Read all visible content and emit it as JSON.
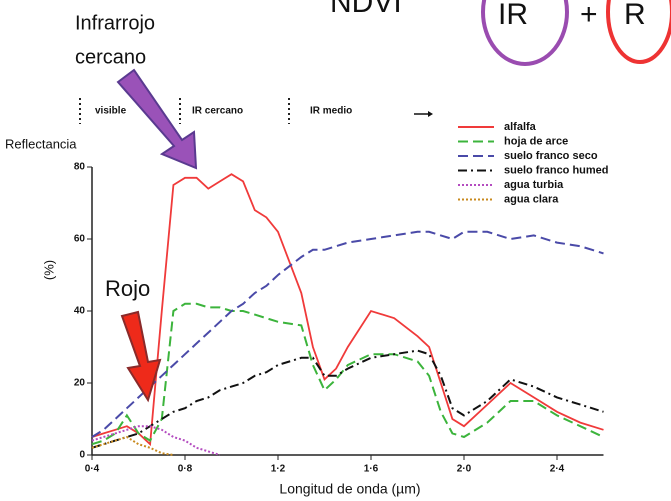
{
  "chart_data": {
    "type": "line",
    "formula": {
      "lhs": "NDVI",
      "terms": [
        "IR",
        "+",
        "R"
      ]
    },
    "annotations": [
      "Infrarrojo",
      "cercano",
      "Rojo"
    ],
    "regions": [
      "visible",
      "IR cercano",
      "IR medio"
    ],
    "y_title": "Reflectancia",
    "ylabel": "(%)",
    "xlabel": "Longitud de onda (µm)",
    "x": [
      0.4,
      0.45,
      0.5,
      0.55,
      0.6,
      0.65,
      0.7,
      0.75,
      0.8,
      0.85,
      0.9,
      0.95,
      1.0,
      1.05,
      1.1,
      1.15,
      1.2,
      1.3,
      1.35,
      1.4,
      1.45,
      1.5,
      1.6,
      1.7,
      1.8,
      1.85,
      1.9,
      1.95,
      2.0,
      2.1,
      2.2,
      2.3,
      2.4,
      2.5,
      2.6
    ],
    "series": [
      {
        "name": "alfalfa",
        "color": "#f03a3a",
        "style": "solid",
        "values": [
          5,
          6,
          7,
          8,
          6,
          3,
          40,
          75,
          77,
          77,
          74,
          76,
          78,
          76,
          68,
          66,
          62,
          45,
          30,
          21,
          24,
          30,
          40,
          38,
          33,
          30,
          20,
          10,
          8,
          14,
          20,
          16,
          12,
          9,
          7
        ]
      },
      {
        "name": "hoja de arce",
        "color": "#3cb43c",
        "style": "dashed",
        "values": [
          3,
          4,
          6,
          11,
          6,
          4,
          10,
          40,
          42,
          42,
          41,
          41,
          40,
          40,
          39,
          38,
          37,
          36,
          25,
          18,
          21,
          25,
          28,
          28,
          26,
          22,
          12,
          6,
          5,
          9,
          15,
          15,
          11,
          8,
          5
        ]
      },
      {
        "name": "suelo franco seco",
        "color": "#4a4aa8",
        "style": "dashed",
        "values": [
          5,
          7,
          10,
          13,
          16,
          19,
          22,
          25,
          28,
          31,
          34,
          37,
          40,
          42,
          45,
          47,
          50,
          55,
          57,
          57,
          58,
          59,
          60,
          61,
          62,
          62,
          61,
          60,
          62,
          62,
          60,
          61,
          59,
          58,
          56
        ]
      },
      {
        "name": "suelo franco humed",
        "color": "#111111",
        "style": "dashdot",
        "values": [
          2,
          3,
          4,
          5,
          6,
          8,
          10,
          12,
          13,
          15,
          16,
          18,
          19,
          20,
          22,
          23,
          25,
          27,
          27,
          22,
          22,
          24,
          27,
          28,
          29,
          28,
          22,
          13,
          11,
          15,
          21,
          19,
          16,
          14,
          12
        ]
      },
      {
        "name": "agua turbia",
        "color": "#b44cc0",
        "style": "dotted",
        "values": [
          4,
          5,
          6,
          7,
          8,
          8,
          7,
          5,
          4,
          2,
          1,
          0,
          null,
          null,
          null,
          null,
          null,
          null,
          null,
          null,
          null,
          null,
          null,
          null,
          null,
          null,
          null,
          null,
          null,
          null,
          null,
          null,
          null,
          null,
          null
        ]
      },
      {
        "name": "agua clara",
        "color": "#c88a1e",
        "style": "dotted",
        "values": [
          2,
          3,
          4,
          5,
          3,
          2,
          0.5,
          0,
          null,
          null,
          null,
          null,
          null,
          null,
          null,
          null,
          null,
          null,
          null,
          null,
          null,
          null,
          null,
          null,
          null,
          null,
          null,
          null,
          null,
          null,
          null,
          null,
          null,
          null,
          null
        ]
      }
    ],
    "xlim": [
      0.4,
      2.6
    ],
    "xticks": [
      {
        "value": 0.4,
        "label": "0·4"
      },
      {
        "value": 0.8,
        "label": "0·8"
      },
      {
        "value": 1.2,
        "label": "1·2"
      },
      {
        "value": 1.6,
        "label": "1·6"
      },
      {
        "value": 2.0,
        "label": "2·0"
      },
      {
        "value": 2.4,
        "label": "2·4"
      }
    ],
    "ylim": [
      0,
      80
    ],
    "yticks": [
      0,
      20,
      40,
      60,
      80
    ]
  }
}
